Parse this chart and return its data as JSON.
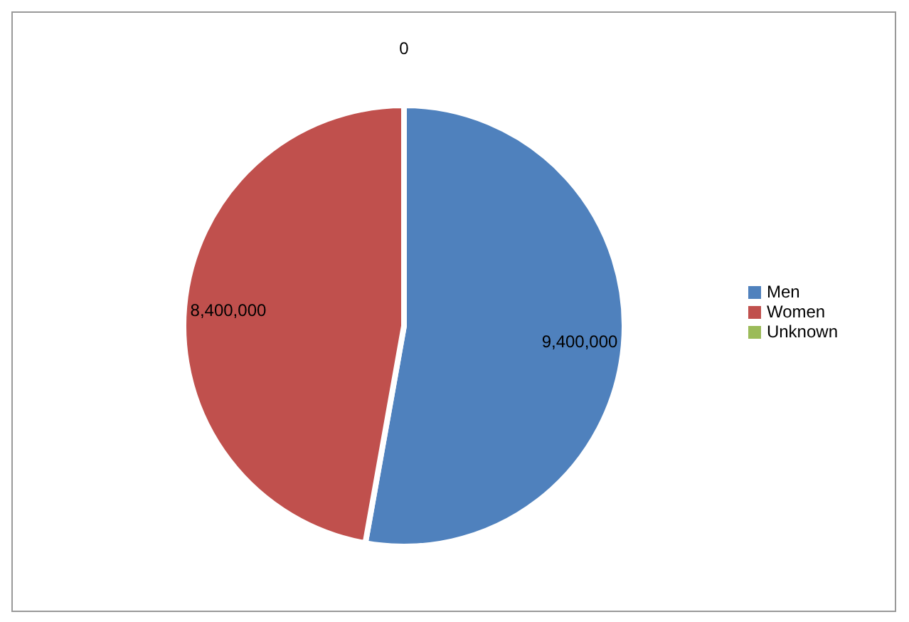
{
  "chart_data": {
    "type": "pie",
    "categories": [
      "Men",
      "Women",
      "Unknown"
    ],
    "values": [
      9400000,
      8400000,
      0
    ],
    "colors": [
      "#4f81bd",
      "#c0504d",
      "#9bbb59"
    ],
    "value_labels": [
      "9,400,000",
      "8,400,000",
      "0"
    ],
    "legend": "right"
  }
}
